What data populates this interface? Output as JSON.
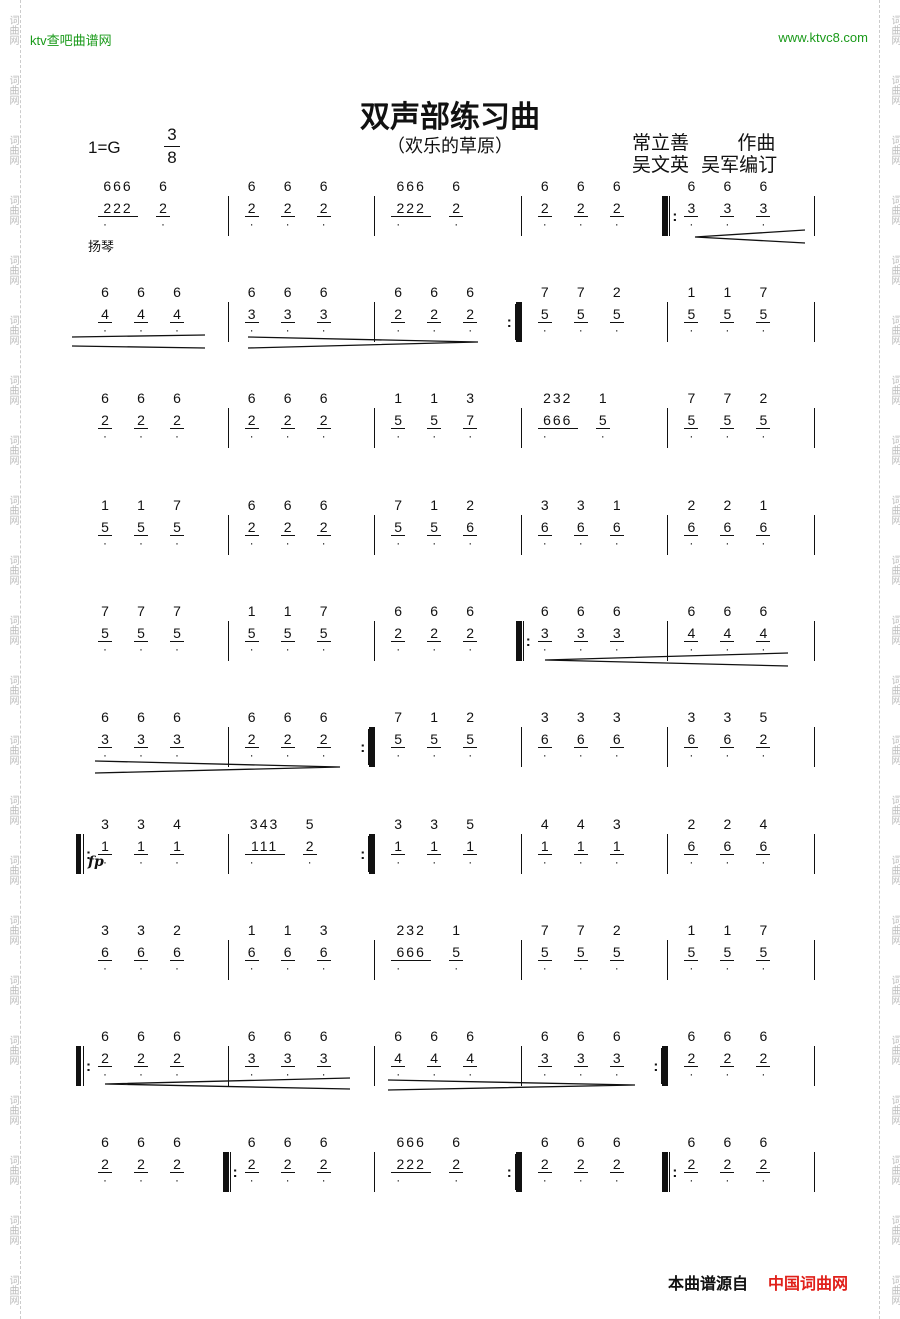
{
  "watermark": {
    "left_site": "ktv查吧曲谱网",
    "right_site": "www.ktvc8.com",
    "side_text": "词曲网"
  },
  "title": "双声部练习曲",
  "subtitle": "（欢乐的草原）",
  "key": "1=G",
  "time_signature": {
    "top": "3",
    "bottom": "8"
  },
  "credits": {
    "line1": "常立善        作曲",
    "line2": "吴文英  吴军编订"
  },
  "annotations": {
    "instrument": "扬琴",
    "dynamic": "fp"
  },
  "rows": [
    [
      {
        "up": [
          "666",
          "6"
        ],
        "lo": [
          "222",
          "2"
        ]
      },
      {
        "up": [
          "6",
          "6",
          "6"
        ],
        "lo": [
          "2",
          "2",
          "2"
        ]
      },
      {
        "up": [
          "666",
          "6"
        ],
        "lo": [
          "222",
          "2"
        ]
      },
      {
        "up": [
          "6",
          "6",
          "6"
        ],
        "lo": [
          "2",
          "2",
          "2"
        ]
      },
      {
        "bar": "repeat-start",
        "up": [
          "6",
          "6",
          "6"
        ],
        "lo": [
          "3",
          "3",
          "3"
        ]
      }
    ],
    [
      {
        "up": [
          "6",
          "6",
          "6"
        ],
        "lo": [
          "4",
          "4",
          "4"
        ]
      },
      {
        "up": [
          "6",
          "6",
          "6"
        ],
        "lo": [
          "3",
          "3",
          "3"
        ]
      },
      {
        "up": [
          "6",
          "6",
          "6"
        ],
        "lo": [
          "2",
          "2",
          "2"
        ]
      },
      {
        "bar": "repeat-end",
        "up": [
          "7",
          "7",
          "2"
        ],
        "lo": [
          "5",
          "5",
          "5"
        ]
      },
      {
        "up": [
          "1",
          "1",
          "7"
        ],
        "lo": [
          "5",
          "5",
          "5"
        ]
      }
    ],
    [
      {
        "up": [
          "6",
          "6",
          "6"
        ],
        "lo": [
          "2",
          "2",
          "2"
        ]
      },
      {
        "up": [
          "6",
          "6",
          "6"
        ],
        "lo": [
          "2",
          "2",
          "2"
        ]
      },
      {
        "up": [
          "1",
          "1",
          "3"
        ],
        "lo": [
          "5",
          "5",
          "7"
        ]
      },
      {
        "up": [
          "232",
          "1"
        ],
        "lo": [
          "666",
          "5"
        ]
      },
      {
        "up": [
          "7",
          "7",
          "2"
        ],
        "lo": [
          "5",
          "5",
          "5"
        ]
      }
    ],
    [
      {
        "up": [
          "1",
          "1",
          "7"
        ],
        "lo": [
          "5",
          "5",
          "5"
        ]
      },
      {
        "up": [
          "6",
          "6",
          "6"
        ],
        "lo": [
          "2",
          "2",
          "2"
        ]
      },
      {
        "up": [
          "7",
          "1",
          "2"
        ],
        "lo": [
          "5",
          "5",
          "6"
        ]
      },
      {
        "up": [
          "3",
          "3",
          "1"
        ],
        "lo": [
          "6",
          "6",
          "6"
        ]
      },
      {
        "up": [
          "2",
          "2",
          "1"
        ],
        "lo": [
          "6",
          "6",
          "6"
        ]
      }
    ],
    [
      {
        "up": [
          "7",
          "7",
          "7"
        ],
        "lo": [
          "5",
          "5",
          "5"
        ]
      },
      {
        "up": [
          "1",
          "1",
          "7"
        ],
        "lo": [
          "5",
          "5",
          "5"
        ]
      },
      {
        "up": [
          "6",
          "6",
          "6"
        ],
        "lo": [
          "2",
          "2",
          "2"
        ]
      },
      {
        "bar": "repeat-start",
        "up": [
          "6",
          "6",
          "6"
        ],
        "lo": [
          "3",
          "3",
          "3"
        ]
      },
      {
        "up": [
          "6",
          "6",
          "6"
        ],
        "lo": [
          "4",
          "4",
          "4"
        ]
      }
    ],
    [
      {
        "up": [
          "6",
          "6",
          "6"
        ],
        "lo": [
          "3",
          "3",
          "3"
        ]
      },
      {
        "up": [
          "6",
          "6",
          "6"
        ],
        "lo": [
          "2",
          "2",
          "2"
        ]
      },
      {
        "bar": "repeat-end",
        "up": [
          "7",
          "1",
          "2"
        ],
        "lo": [
          "5",
          "5",
          "5"
        ]
      },
      {
        "up": [
          "3",
          "3",
          "3"
        ],
        "lo": [
          "6",
          "6",
          "6"
        ]
      },
      {
        "up": [
          "3",
          "3",
          "5"
        ],
        "lo": [
          "6",
          "6",
          "2"
        ]
      }
    ],
    [
      {
        "bar": "repeat-start",
        "up": [
          "3",
          "3",
          "4"
        ],
        "lo": [
          "1",
          "1",
          "1"
        ]
      },
      {
        "up": [
          "343",
          "5"
        ],
        "lo": [
          "111",
          "2"
        ]
      },
      {
        "bar": "repeat-end",
        "up": [
          "3",
          "3",
          "5"
        ],
        "lo": [
          "1",
          "1",
          "1"
        ]
      },
      {
        "up": [
          "4",
          "4",
          "3"
        ],
        "lo": [
          "1",
          "1",
          "1"
        ]
      },
      {
        "up": [
          "2",
          "2",
          "4"
        ],
        "lo": [
          "6",
          "6",
          "6"
        ]
      }
    ],
    [
      {
        "up": [
          "3",
          "3",
          "2"
        ],
        "lo": [
          "6",
          "6",
          "6"
        ]
      },
      {
        "up": [
          "1",
          "1",
          "3"
        ],
        "lo": [
          "6",
          "6",
          "6"
        ]
      },
      {
        "up": [
          "232",
          "1"
        ],
        "lo": [
          "666",
          "5"
        ]
      },
      {
        "up": [
          "7",
          "7",
          "2"
        ],
        "lo": [
          "5",
          "5",
          "5"
        ]
      },
      {
        "up": [
          "1",
          "1",
          "7"
        ],
        "lo": [
          "5",
          "5",
          "5"
        ]
      }
    ],
    [
      {
        "bar": "repeat-start",
        "up": [
          "6",
          "6",
          "6"
        ],
        "lo": [
          "2",
          "2",
          "2"
        ]
      },
      {
        "up": [
          "6",
          "6",
          "6"
        ],
        "lo": [
          "3",
          "3",
          "3"
        ]
      },
      {
        "up": [
          "6",
          "6",
          "6"
        ],
        "lo": [
          "4",
          "4",
          "4"
        ]
      },
      {
        "up": [
          "6",
          "6",
          "6"
        ],
        "lo": [
          "3",
          "3",
          "3"
        ]
      },
      {
        "bar": "repeat-end",
        "up": [
          "6",
          "6",
          "6"
        ],
        "lo": [
          "2",
          "2",
          "2"
        ]
      }
    ],
    [
      {
        "up": [
          "6",
          "6",
          "6"
        ],
        "lo": [
          "2",
          "2",
          "2"
        ]
      },
      {
        "bar": "repeat-start",
        "up": [
          "6",
          "6",
          "6"
        ],
        "lo": [
          "2",
          "2",
          "2"
        ]
      },
      {
        "up": [
          "666",
          "6"
        ],
        "lo": [
          "222",
          "2"
        ]
      },
      {
        "bar": "repeat-end",
        "up": [
          "6",
          "6",
          "6"
        ],
        "lo": [
          "2",
          "2",
          "2"
        ]
      },
      {
        "bar": "repeat-start",
        "up": [
          "6",
          "6",
          "6"
        ],
        "lo": [
          "2",
          "2",
          "2"
        ]
      }
    ]
  ],
  "footer": {
    "source_label": "本曲谱源自",
    "source_site": "中国词曲网"
  }
}
